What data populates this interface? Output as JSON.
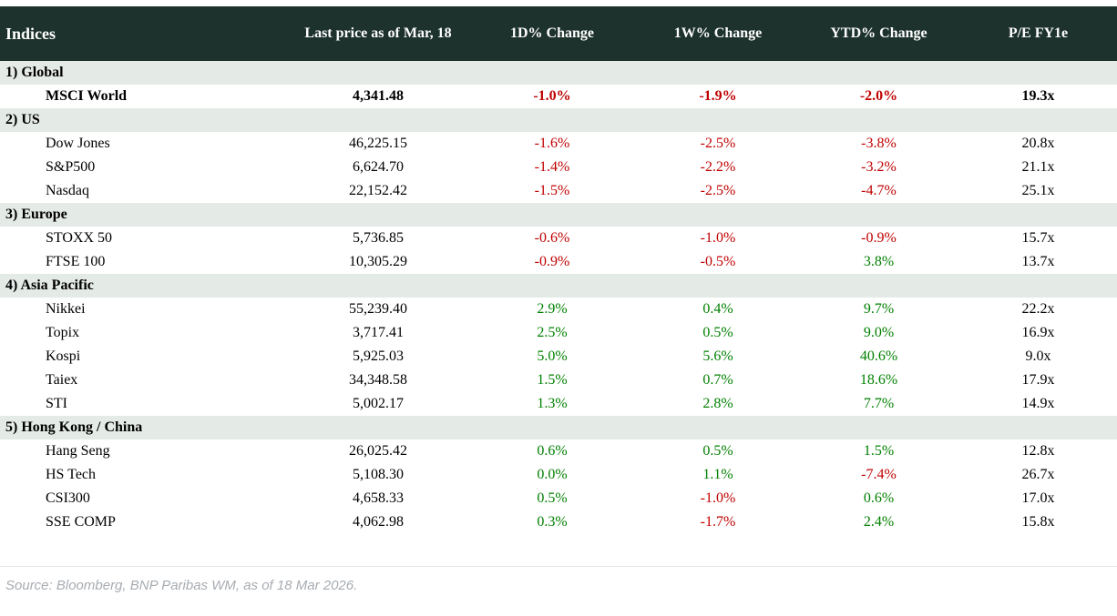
{
  "colors": {
    "header_bg": "#1d322c",
    "header_text": "#ffffff",
    "section_bg": "#e4eae6",
    "body_text": "#000000",
    "negative": "#c00000",
    "positive": "#008000",
    "source_text": "#a7acb1",
    "divider": "#e4e4e4"
  },
  "chart_data": {
    "type": "table",
    "title": "Indices",
    "columns": [
      "Indices",
      "Last price as of Mar, 18",
      "1D% Change",
      "1W% Change",
      "YTD% Change",
      "P/E FY1e"
    ],
    "sections": [
      {
        "label": "1) Global",
        "rows": [
          {
            "name": "MSCI World",
            "last_price": "4,341.48",
            "change_1d": "-1.0%",
            "change_1w": "-1.9%",
            "change_ytd": "-2.0%",
            "pe": "19.3x",
            "bold": true
          }
        ]
      },
      {
        "label": "2) US",
        "rows": [
          {
            "name": "Dow Jones",
            "last_price": "46,225.15",
            "change_1d": "-1.6%",
            "change_1w": "-2.5%",
            "change_ytd": "-3.8%",
            "pe": "20.8x",
            "bold": false
          },
          {
            "name": "S&P500",
            "last_price": "6,624.70",
            "change_1d": "-1.4%",
            "change_1w": "-2.2%",
            "change_ytd": "-3.2%",
            "pe": "21.1x",
            "bold": false
          },
          {
            "name": "Nasdaq",
            "last_price": "22,152.42",
            "change_1d": "-1.5%",
            "change_1w": "-2.5%",
            "change_ytd": "-4.7%",
            "pe": "25.1x",
            "bold": false
          }
        ]
      },
      {
        "label": "3) Europe",
        "rows": [
          {
            "name": "STOXX 50",
            "last_price": "5,736.85",
            "change_1d": "-0.6%",
            "change_1w": "-1.0%",
            "change_ytd": "-0.9%",
            "pe": "15.7x",
            "bold": false
          },
          {
            "name": "FTSE 100",
            "last_price": "10,305.29",
            "change_1d": "-0.9%",
            "change_1w": "-0.5%",
            "change_ytd": "3.8%",
            "pe": "13.7x",
            "bold": false
          }
        ]
      },
      {
        "label": "4) Asia Pacific",
        "rows": [
          {
            "name": "Nikkei",
            "last_price": "55,239.40",
            "change_1d": "2.9%",
            "change_1w": "0.4%",
            "change_ytd": "9.7%",
            "pe": "22.2x",
            "bold": false
          },
          {
            "name": "Topix",
            "last_price": "3,717.41",
            "change_1d": "2.5%",
            "change_1w": "0.5%",
            "change_ytd": "9.0%",
            "pe": "16.9x",
            "bold": false
          },
          {
            "name": "Kospi",
            "last_price": "5,925.03",
            "change_1d": "5.0%",
            "change_1w": "5.6%",
            "change_ytd": "40.6%",
            "pe": "9.0x",
            "bold": false
          },
          {
            "name": "Taiex",
            "last_price": "34,348.58",
            "change_1d": "1.5%",
            "change_1w": "0.7%",
            "change_ytd": "18.6%",
            "pe": "17.9x",
            "bold": false
          },
          {
            "name": "STI",
            "last_price": "5,002.17",
            "change_1d": "1.3%",
            "change_1w": "2.8%",
            "change_ytd": "7.7%",
            "pe": "14.9x",
            "bold": false
          }
        ]
      },
      {
        "label": "5) Hong Kong / China",
        "rows": [
          {
            "name": "Hang Seng",
            "last_price": "26,025.42",
            "change_1d": "0.6%",
            "change_1w": "0.5%",
            "change_ytd": "1.5%",
            "pe": "12.8x",
            "bold": false
          },
          {
            "name": "HS Tech",
            "last_price": "5,108.30",
            "change_1d": "0.0%",
            "change_1w": "1.1%",
            "change_ytd": "-7.4%",
            "pe": "26.7x",
            "bold": false
          },
          {
            "name": "CSI300",
            "last_price": "4,658.33",
            "change_1d": "0.5%",
            "change_1w": "-1.0%",
            "change_ytd": "0.6%",
            "pe": "17.0x",
            "bold": false
          },
          {
            "name": "SSE COMP",
            "last_price": "4,062.98",
            "change_1d": "0.3%",
            "change_1w": "-1.7%",
            "change_ytd": "2.4%",
            "pe": "15.8x",
            "bold": false
          }
        ]
      }
    ]
  },
  "footer": {
    "source": "Source: Bloomberg, BNP Paribas WM, as of 18 Mar 2026."
  }
}
